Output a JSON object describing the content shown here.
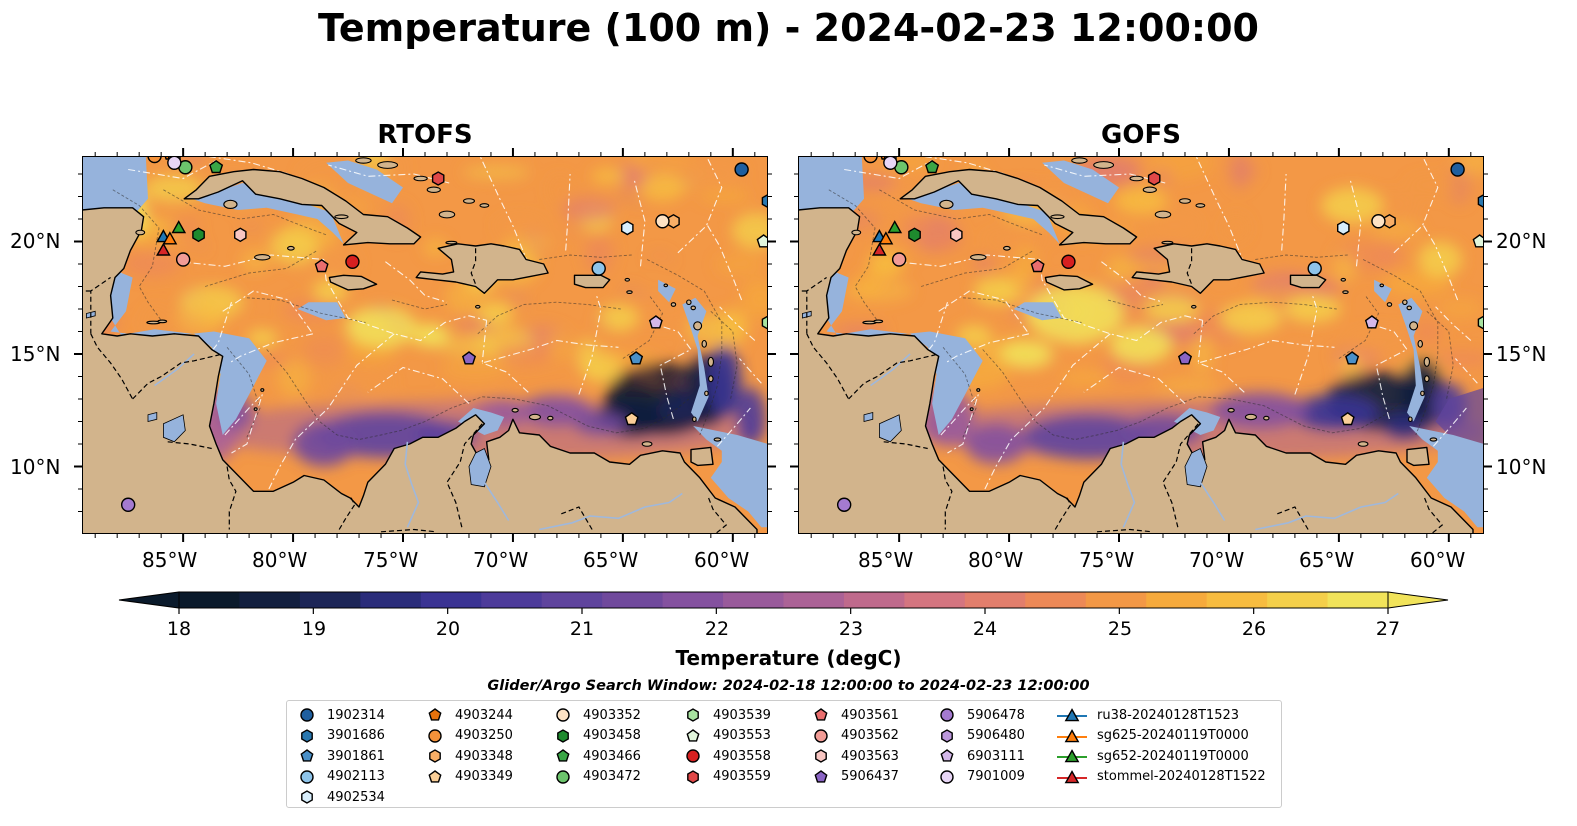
{
  "title": "Temperature (100 m) - 2024-02-23 12:00:00",
  "panels": [
    {
      "title": "RTOFS",
      "variant": "rtofs"
    },
    {
      "title": "GOFS",
      "variant": "gofs"
    }
  ],
  "axes": {
    "lon_ticks": [
      "85°W",
      "80°W",
      "75°W",
      "70°W",
      "65°W",
      "60°W"
    ],
    "lat_ticks": [
      "20°N",
      "15°N",
      "10°N"
    ],
    "lon_range": [
      -89.6,
      -58.4
    ],
    "lat_range": [
      7.0,
      23.8
    ]
  },
  "colorbar": {
    "label": "Temperature (degC)",
    "ticks": [
      "18",
      "19",
      "20",
      "21",
      "22",
      "23",
      "24",
      "25",
      "26",
      "27"
    ],
    "range": [
      18,
      27
    ],
    "colors": [
      "#0a1a2b",
      "#121f3f",
      "#1c2557",
      "#2a2c7a",
      "#3a3393",
      "#4d3b9a",
      "#5f449d",
      "#70499c",
      "#84519f",
      "#995a9b",
      "#ab6296",
      "#bf6a8c",
      "#d47580",
      "#e27e6c",
      "#ed8957",
      "#f39846",
      "#f6aa3c",
      "#f7bc40",
      "#f4cf4a",
      "#f1e35a"
    ]
  },
  "map_colors": {
    "land": "#d2b48c",
    "shelf": "#96b3dc",
    "deep": "#0c2433"
  },
  "legend": {
    "title": "Glider/Argo Search Window: 2024-02-18 12:00:00 to 2024-02-23 12:00:00",
    "items": [
      {
        "label": "1902314",
        "marker": "circle",
        "color": "#1f5f9f"
      },
      {
        "label": "3901686",
        "marker": "hexagon",
        "color": "#2a78b0"
      },
      {
        "label": "3901861",
        "marker": "pentagon",
        "color": "#4a90c8"
      },
      {
        "label": "4902113",
        "marker": "circle",
        "color": "#8ec4ea"
      },
      {
        "label": "4902534",
        "marker": "hexagon",
        "color": "#d8eefc"
      },
      {
        "label": "4903244",
        "marker": "pentagon",
        "color": "#e8720c"
      },
      {
        "label": "4903250",
        "marker": "circle",
        "color": "#f4923a"
      },
      {
        "label": "4903348",
        "marker": "hexagon",
        "color": "#f8ae66"
      },
      {
        "label": "4903349",
        "marker": "pentagon",
        "color": "#fbcf98"
      },
      {
        "label": "4903352",
        "marker": "circle",
        "color": "#fde2c4"
      },
      {
        "label": "4903458",
        "marker": "hexagon",
        "color": "#1e8a2e"
      },
      {
        "label": "4903466",
        "marker": "pentagon",
        "color": "#3aa646"
      },
      {
        "label": "4903472",
        "marker": "circle",
        "color": "#6cc46c"
      },
      {
        "label": "4903539",
        "marker": "hexagon",
        "color": "#a8e3a0"
      },
      {
        "label": "4903553",
        "marker": "pentagon",
        "color": "#e2f6dc"
      },
      {
        "label": "4903558",
        "marker": "circle",
        "color": "#d62020"
      },
      {
        "label": "4903559",
        "marker": "hexagon",
        "color": "#e04848"
      },
      {
        "label": "4903561",
        "marker": "pentagon",
        "color": "#ea6e6e"
      },
      {
        "label": "4903562",
        "marker": "circle",
        "color": "#f29c96"
      },
      {
        "label": "4903563",
        "marker": "hexagon",
        "color": "#f8c6c2"
      },
      {
        "label": "5906437",
        "marker": "pentagon",
        "color": "#8a64c4"
      },
      {
        "label": "5906478",
        "marker": "circle",
        "color": "#a47ad0"
      },
      {
        "label": "5906480",
        "marker": "hexagon",
        "color": "#bc98dc"
      },
      {
        "label": "6903111",
        "marker": "pentagon",
        "color": "#d4b8ea"
      },
      {
        "label": "7901009",
        "marker": "circle",
        "color": "#e8d6f6"
      },
      {
        "label": "ru38-20240128T1523",
        "marker": "triangle-line",
        "color": "#1f77b4"
      },
      {
        "label": "sg625-20240119T0000",
        "marker": "triangle-line",
        "color": "#ff7f0e"
      },
      {
        "label": "sg652-20240119T0000",
        "marker": "triangle-line",
        "color": "#2ca02c"
      },
      {
        "label": "stommel-20240128T1522",
        "marker": "triangle-line",
        "color": "#d62728"
      }
    ]
  },
  "observations": [
    {
      "id": "1902314",
      "lon": -59.6,
      "lat": 23.2
    },
    {
      "id": "3901686",
      "lon": -58.4,
      "lat": 21.8
    },
    {
      "id": "3901861",
      "lon": -64.4,
      "lat": 14.8
    },
    {
      "id": "4902113",
      "lon": -66.1,
      "lat": 18.8
    },
    {
      "id": "4902534",
      "lon": -64.8,
      "lat": 20.6
    },
    {
      "id": "4903244",
      "lon": -85.6,
      "lat": 23.9
    },
    {
      "id": "4903250",
      "lon": -86.3,
      "lat": 23.8
    },
    {
      "id": "4903348",
      "lon": -62.7,
      "lat": 20.9
    },
    {
      "id": "4903349",
      "lon": -64.6,
      "lat": 12.1
    },
    {
      "id": "4903352",
      "lon": -63.2,
      "lat": 20.9
    },
    {
      "id": "4903458",
      "lon": -84.3,
      "lat": 20.3
    },
    {
      "id": "4903466",
      "lon": -83.5,
      "lat": 23.3
    },
    {
      "id": "4903472",
      "lon": -84.9,
      "lat": 23.3
    },
    {
      "id": "4903539",
      "lon": -58.4,
      "lat": 16.4
    },
    {
      "id": "4903553",
      "lon": -58.6,
      "lat": 20.0
    },
    {
      "id": "4903558",
      "lon": -77.3,
      "lat": 19.1
    },
    {
      "id": "4903559",
      "lon": -73.4,
      "lat": 22.8
    },
    {
      "id": "4903561",
      "lon": -78.7,
      "lat": 18.9
    },
    {
      "id": "4903562",
      "lon": -85.0,
      "lat": 19.2
    },
    {
      "id": "4903563",
      "lon": -82.4,
      "lat": 20.3
    },
    {
      "id": "5906437",
      "lon": -72.0,
      "lat": 14.8
    },
    {
      "id": "5906478",
      "lon": -87.5,
      "lat": 8.3
    },
    {
      "id": "5906480",
      "lon": -85.4,
      "lat": 23.8
    },
    {
      "id": "6903111",
      "lon": -63.5,
      "lat": 16.4
    },
    {
      "id": "7901009",
      "lon": -85.4,
      "lat": 23.5
    },
    {
      "id": "ru38-20240128T1523",
      "lon": -85.9,
      "lat": 20.2
    },
    {
      "id": "sg625-20240119T0000",
      "lon": -85.6,
      "lat": 20.1
    },
    {
      "id": "sg652-20240119T0000",
      "lon": -85.2,
      "lat": 20.6
    },
    {
      "id": "stommel-20240128T1522",
      "lon": -85.9,
      "lat": 19.6
    }
  ]
}
